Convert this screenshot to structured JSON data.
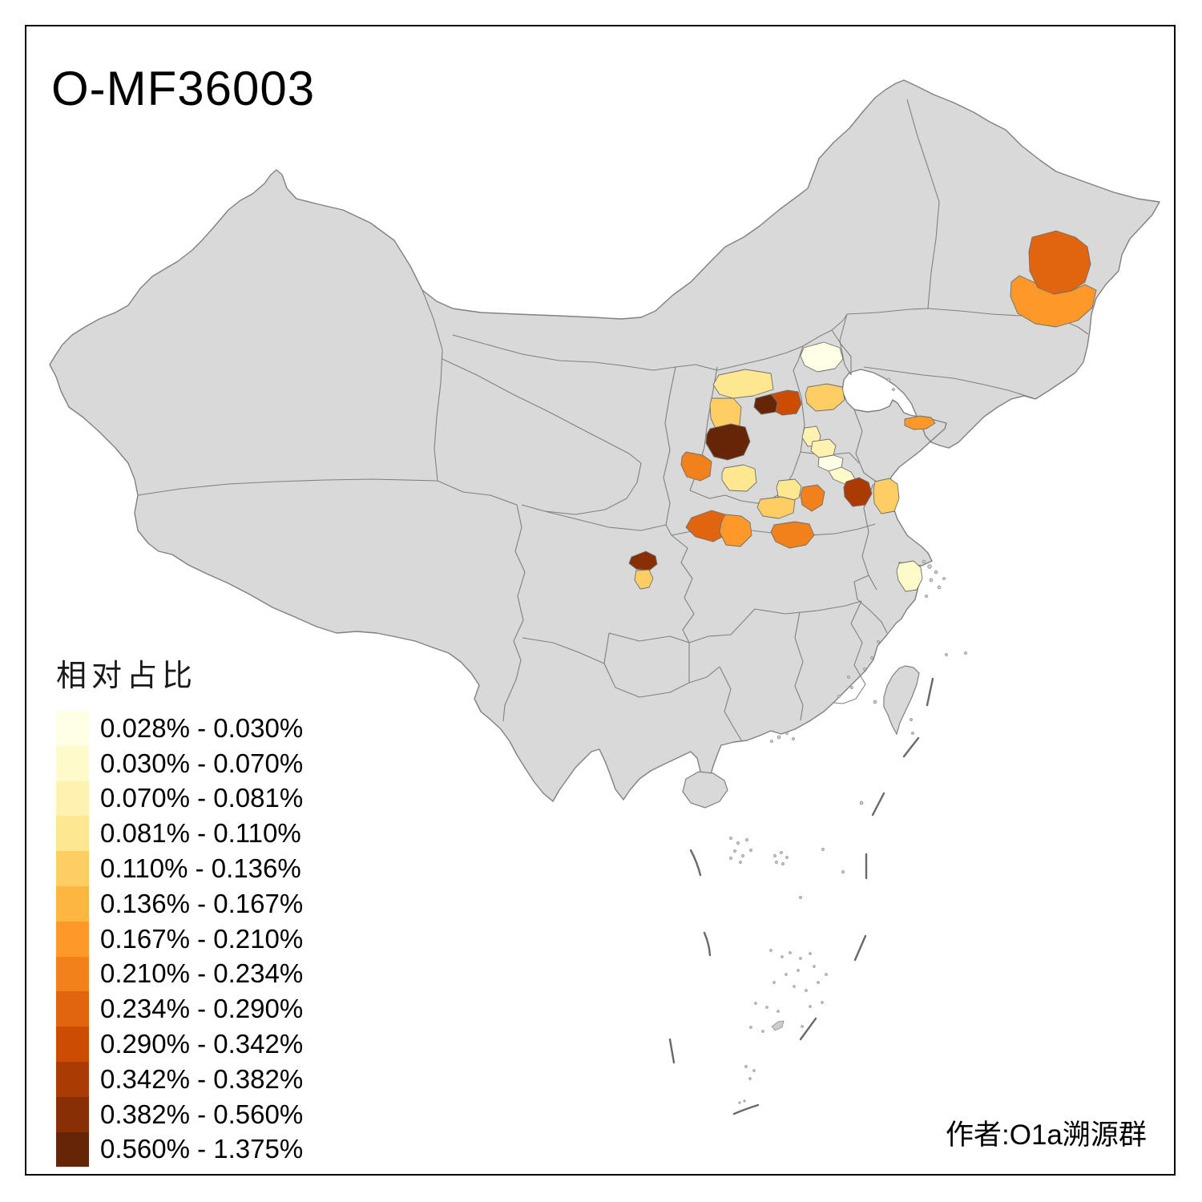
{
  "page": {
    "title": "O-MF36003",
    "attribution": "作者:O1a溯源群"
  },
  "legend": {
    "title": "相对占比",
    "classes": [
      {
        "range": "0.028% - 0.030%",
        "color": "#FFFFE5"
      },
      {
        "range": "0.030% - 0.070%",
        "color": "#FFFACA"
      },
      {
        "range": "0.070% - 0.081%",
        "color": "#FFF1AF"
      },
      {
        "range": "0.081% - 0.110%",
        "color": "#FEE791"
      },
      {
        "range": "0.110% - 0.136%",
        "color": "#FECE65"
      },
      {
        "range": "0.136% - 0.167%",
        "color": "#FEB642"
      },
      {
        "range": "0.167% - 0.210%",
        "color": "#FE9929"
      },
      {
        "range": "0.210% - 0.234%",
        "color": "#F2801B"
      },
      {
        "range": "0.234% - 0.290%",
        "color": "#E1640E"
      },
      {
        "range": "0.290% - 0.342%",
        "color": "#CC4C02"
      },
      {
        "range": "0.342% - 0.382%",
        "color": "#AA3C03"
      },
      {
        "range": "0.382% - 0.560%",
        "color": "#882F05"
      },
      {
        "range": "0.560% - 1.375%",
        "color": "#662506"
      }
    ]
  },
  "map": {
    "background": "#FFFFFF",
    "land_color": "#D9D9D9",
    "border_color": "#808080",
    "region_border_color": "#6E6E6E",
    "dash_line_color": "#696969",
    "frame_color": "#000000",
    "regions": [
      {
        "id": "r1",
        "class": 9
      },
      {
        "id": "r2",
        "class": 7
      },
      {
        "id": "r3",
        "class": 1
      },
      {
        "id": "r4",
        "class": 4
      },
      {
        "id": "r5",
        "class": 5
      },
      {
        "id": "r6",
        "class": 13
      },
      {
        "id": "r7",
        "class": 10
      },
      {
        "id": "r8",
        "class": 5
      },
      {
        "id": "r9",
        "class": 13
      },
      {
        "id": "r10",
        "class": 8
      },
      {
        "id": "r11",
        "class": 4
      },
      {
        "id": "r12",
        "class": 3
      },
      {
        "id": "r13",
        "class": 3
      },
      {
        "id": "r14",
        "class": 1
      },
      {
        "id": "r15",
        "class": 2
      },
      {
        "id": "r16",
        "class": 11
      },
      {
        "id": "r17",
        "class": 5
      },
      {
        "id": "r18",
        "class": 7
      },
      {
        "id": "r19",
        "class": 4
      },
      {
        "id": "r20",
        "class": 8
      },
      {
        "id": "r21",
        "class": 5
      },
      {
        "id": "r22",
        "class": 9
      },
      {
        "id": "r23",
        "class": 7
      },
      {
        "id": "r24",
        "class": 8
      },
      {
        "id": "r25",
        "class": 12
      },
      {
        "id": "r26",
        "class": 5
      },
      {
        "id": "r27",
        "class": 2
      }
    ]
  }
}
